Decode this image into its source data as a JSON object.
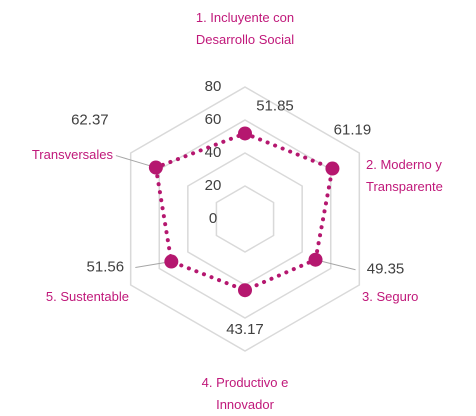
{
  "chart_data": {
    "type": "radar",
    "categories": [
      "1. Incluyente con Desarrollo Social",
      "2. Moderno y Transparente",
      "3. Seguro",
      "4. Productivo e Innovador",
      "5. Sustentable",
      "Transversales"
    ],
    "series": [
      {
        "name": null,
        "color": "#b5176f",
        "values": [
          51.85,
          61.19,
          49.35,
          43.17,
          51.56,
          62.37
        ]
      }
    ],
    "rlim": [
      0,
      80
    ],
    "rticks": [
      0,
      20,
      40,
      60,
      80
    ],
    "grid": true
  }
}
